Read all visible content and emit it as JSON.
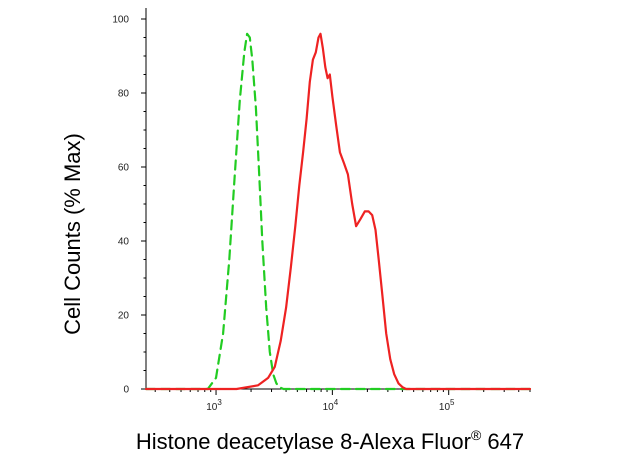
{
  "chart_data": {
    "type": "line",
    "xlabel": "Histone deacetylase 8-Alexa Fluor",
    "xlabel_superscript": "®",
    "xlabel_suffix": " 647",
    "ylabel": "Cell Counts (% Max)",
    "x_scale": "log",
    "xlim": [
      250,
      500000
    ],
    "ylim": [
      0,
      100
    ],
    "y_ticks": [
      0,
      20,
      40,
      60,
      80,
      100
    ],
    "x_ticks": [
      {
        "value": 1000,
        "base": "10",
        "exp": "3"
      },
      {
        "value": 10000,
        "base": "10",
        "exp": "4"
      },
      {
        "value": 100000,
        "base": "10",
        "exp": "5"
      }
    ],
    "grid": false,
    "series": [
      {
        "color": "#22cc22",
        "dash": "dashed",
        "x": [
          250,
          600,
          850,
          1000,
          1150,
          1300,
          1450,
          1600,
          1750,
          1850,
          1950,
          2050,
          2200,
          2350,
          2500,
          2700,
          2900,
          3100,
          3300,
          3500,
          3800,
          4500,
          10000,
          100000,
          500000
        ],
        "y": [
          0,
          0,
          0,
          3,
          15,
          35,
          58,
          78,
          91,
          96,
          95,
          89,
          76,
          58,
          40,
          22,
          10,
          4,
          1.5,
          0.5,
          0,
          0,
          0,
          0,
          0
        ]
      },
      {
        "color": "#ee2222",
        "dash": "solid",
        "x": [
          250,
          1500,
          2300,
          2800,
          3200,
          3600,
          4000,
          4400,
          4800,
          5200,
          5600,
          6000,
          6400,
          6800,
          7200,
          7600,
          7900,
          8300,
          8700,
          9100,
          9500,
          10000,
          10800,
          11600,
          12600,
          13600,
          14800,
          16000,
          17500,
          19000,
          20500,
          22000,
          23500,
          25000,
          27000,
          29000,
          31500,
          34000,
          37000,
          40000,
          43000,
          47000,
          55000,
          500000
        ],
        "y": [
          0,
          0,
          1,
          3,
          6,
          13,
          22,
          33,
          44,
          55,
          64,
          73,
          83,
          89,
          91,
          95,
          96,
          92,
          87,
          84,
          85,
          79,
          71,
          64,
          61,
          58,
          50,
          44,
          46,
          48,
          48,
          47,
          43,
          35,
          25,
          15,
          8,
          4,
          1.5,
          0.5,
          0,
          0,
          0,
          0
        ]
      }
    ]
  }
}
